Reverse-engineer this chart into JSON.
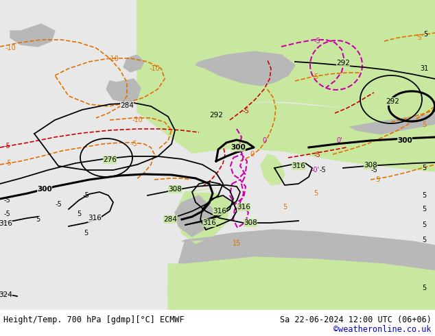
{
  "title_left": "Height/Temp. 700 hPa [gdmp][°C] ECMWF",
  "title_right": "Sa 22-06-2024 12:00 UTC (06+06)",
  "credit": "©weatheronline.co.uk",
  "credit_color": "#0000cc",
  "bg_land_green": "#c8e8a0",
  "bg_sea_white": "#e8e8e8",
  "bg_land_gray": "#b8b8b8",
  "bottom_bar_color": "#ffffff",
  "figsize": [
    6.34,
    4.9
  ],
  "dpi": 100
}
